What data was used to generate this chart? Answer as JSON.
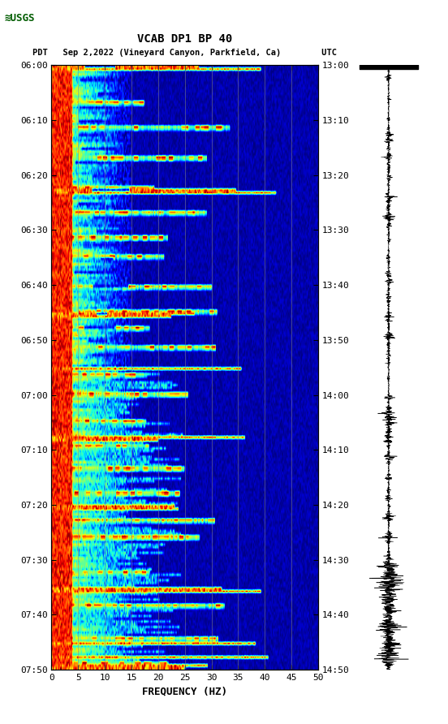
{
  "title_line1": "VCAB DP1 BP 40",
  "title_line2": "PDT   Sep 2,2022 (Vineyard Canyon, Parkfield, Ca)        UTC",
  "xlabel": "FREQUENCY (HZ)",
  "freq_min": 0,
  "freq_max": 50,
  "time_ticks_pdt": [
    "06:00",
    "06:10",
    "06:20",
    "06:30",
    "06:40",
    "06:50",
    "07:00",
    "07:10",
    "07:20",
    "07:30",
    "07:40",
    "07:50"
  ],
  "time_ticks_utc": [
    "13:00",
    "13:10",
    "13:20",
    "13:30",
    "13:40",
    "13:50",
    "14:00",
    "14:10",
    "14:20",
    "14:30",
    "14:40",
    "14:50"
  ],
  "freq_ticks": [
    0,
    5,
    10,
    15,
    20,
    25,
    30,
    35,
    40,
    45,
    50
  ],
  "bg_color": "#ffffff",
  "grid_color": "#888888",
  "title_fontsize": 10,
  "tick_fontsize": 8,
  "label_fontsize": 9
}
